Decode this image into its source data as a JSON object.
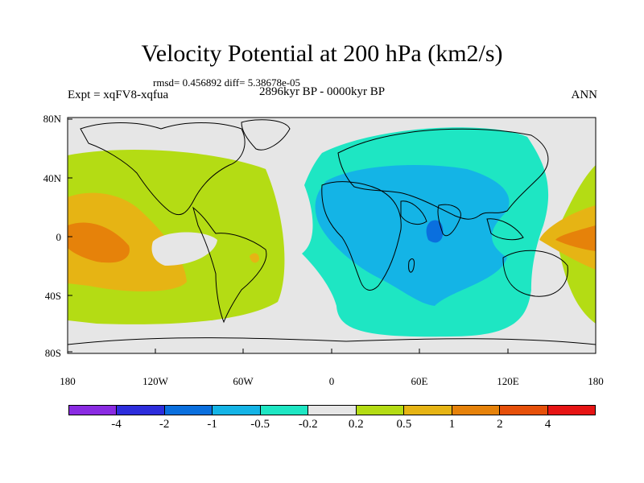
{
  "title": "Velocity Potential at 200 hPa (km2/s)",
  "stats": "rmsd= 0.456892 diff= 5.38678e-05",
  "period": "2896kyr BP - 0000kyr BP",
  "experiment": "Expt = xqFV8-xqfua",
  "season": "ANN",
  "lat_labels": [
    "80N",
    "40N",
    "0",
    "40S",
    "80S"
  ],
  "lon_labels": [
    "180",
    "120W",
    "60W",
    "0",
    "60E",
    "120E",
    "180"
  ],
  "colorbar": {
    "colors": [
      "#8a2be2",
      "#2d2ddc",
      "#0a6fde",
      "#14b4e6",
      "#1ee6c3",
      "#e6e6e6",
      "#b4dc14",
      "#e6b414",
      "#e6820a",
      "#e6500a",
      "#e61414"
    ],
    "labels": [
      "-4",
      "-2",
      "-1",
      "-0.5",
      "-0.2",
      "0.2",
      "0.5",
      "1",
      "2",
      "4"
    ]
  },
  "map_fills": {
    "ocean_land_base": "#e6e6e6",
    "positive_low": "#b4dc14",
    "positive_mid": "#e6b414",
    "positive_high": "#e6820a",
    "negative_low": "#1ee6c3",
    "negative_mid": "#14b4e6",
    "negative_high": "#0a6fde"
  }
}
